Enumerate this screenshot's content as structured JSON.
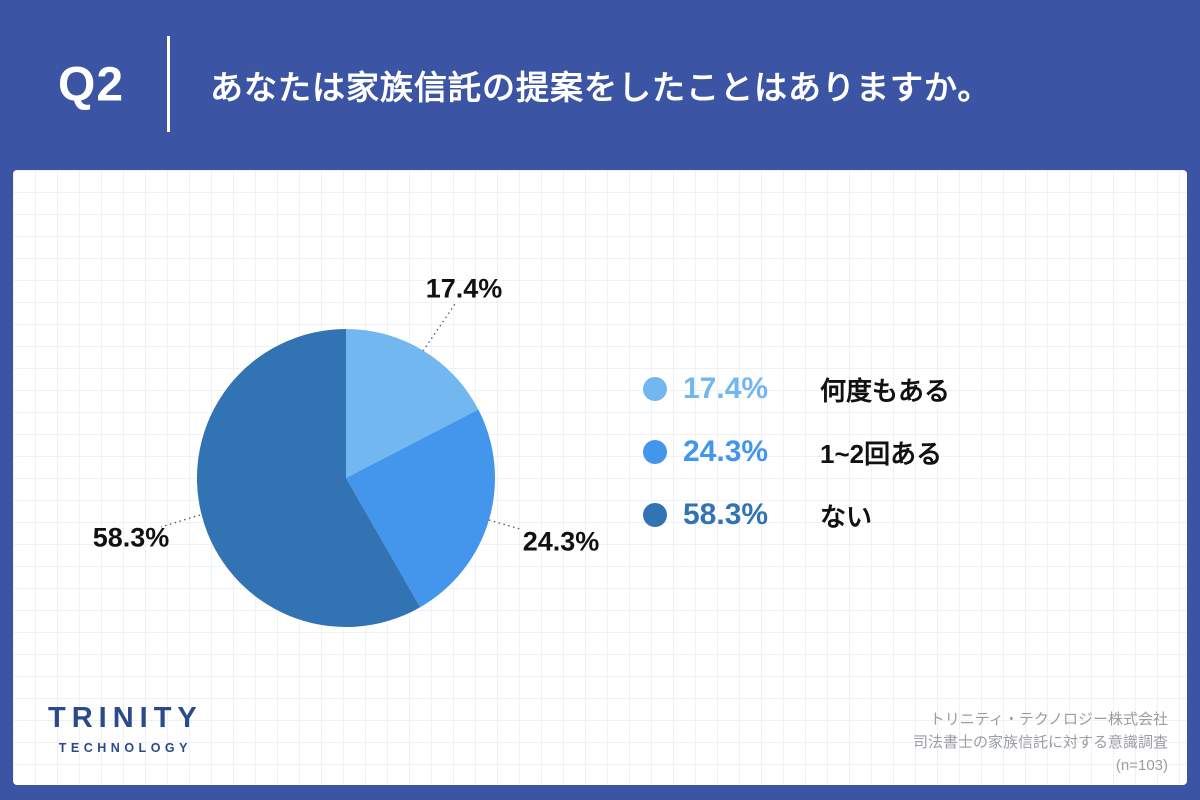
{
  "header": {
    "question_number": "Q2",
    "title": "あなたは家族信託の提案をしたことはありますか。"
  },
  "chart_data": {
    "type": "pie",
    "title": "あなたは家族信託の提案をしたことはありますか。",
    "start_angle_deg": 0,
    "direction": "clockwise",
    "legend_position": "right",
    "slices": [
      {
        "label": "何度もある",
        "value": 17.4,
        "display": "17.4%",
        "color": "#73B7F1"
      },
      {
        "label": "1~2回ある",
        "value": 24.3,
        "display": "24.3%",
        "color": "#4496EC"
      },
      {
        "label": "ない",
        "value": 58.3,
        "display": "58.3%",
        "color": "#3273B3"
      }
    ]
  },
  "footer": {
    "logo": {
      "primary": "TRINITY",
      "secondary": "TECHNOLOGY"
    },
    "credits": {
      "company": "トリニティ・テクノロジー株式会社",
      "survey": "司法書士の家族信託に対する意識調査",
      "sample": "(n=103)"
    }
  },
  "colors": {
    "background": "#3B55A4",
    "card": "#FFFFFF",
    "grid_line": "#EEF1F6",
    "logo_navy": "#2B4A8B",
    "credits_gray": "#9A9DA1",
    "callout_text": "#111111"
  }
}
